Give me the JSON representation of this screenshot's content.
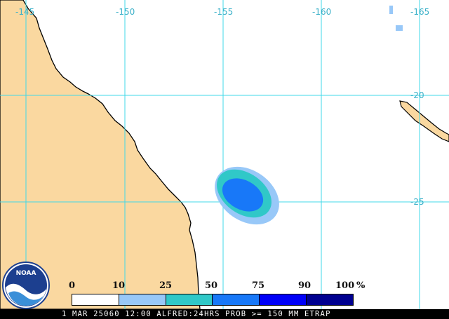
{
  "map": {
    "longitude_labels": [
      "-145",
      "-150",
      "-155",
      "-160",
      "-165"
    ],
    "latitude_labels": [
      "-20",
      "-25"
    ],
    "colors": {
      "land": "#fad8a0",
      "ocean": "#ffffff",
      "coast": "#000000",
      "grid": "#40d8e8"
    }
  },
  "legend": {
    "ticks": [
      "0",
      "10",
      "25",
      "50",
      "75",
      "90",
      "100"
    ],
    "unit": "%",
    "colors": [
      "#ffffff",
      "#98c8f8",
      "#30c8c8",
      "#1878f8",
      "#0000f8",
      "#000090"
    ]
  },
  "logo": {
    "text": "NOAA",
    "icon": "noaa-logo-icon"
  },
  "caption": "1 MAR 25060 12:00 ALFRED:24HRS PROB >= 150 MM ETRAP"
}
